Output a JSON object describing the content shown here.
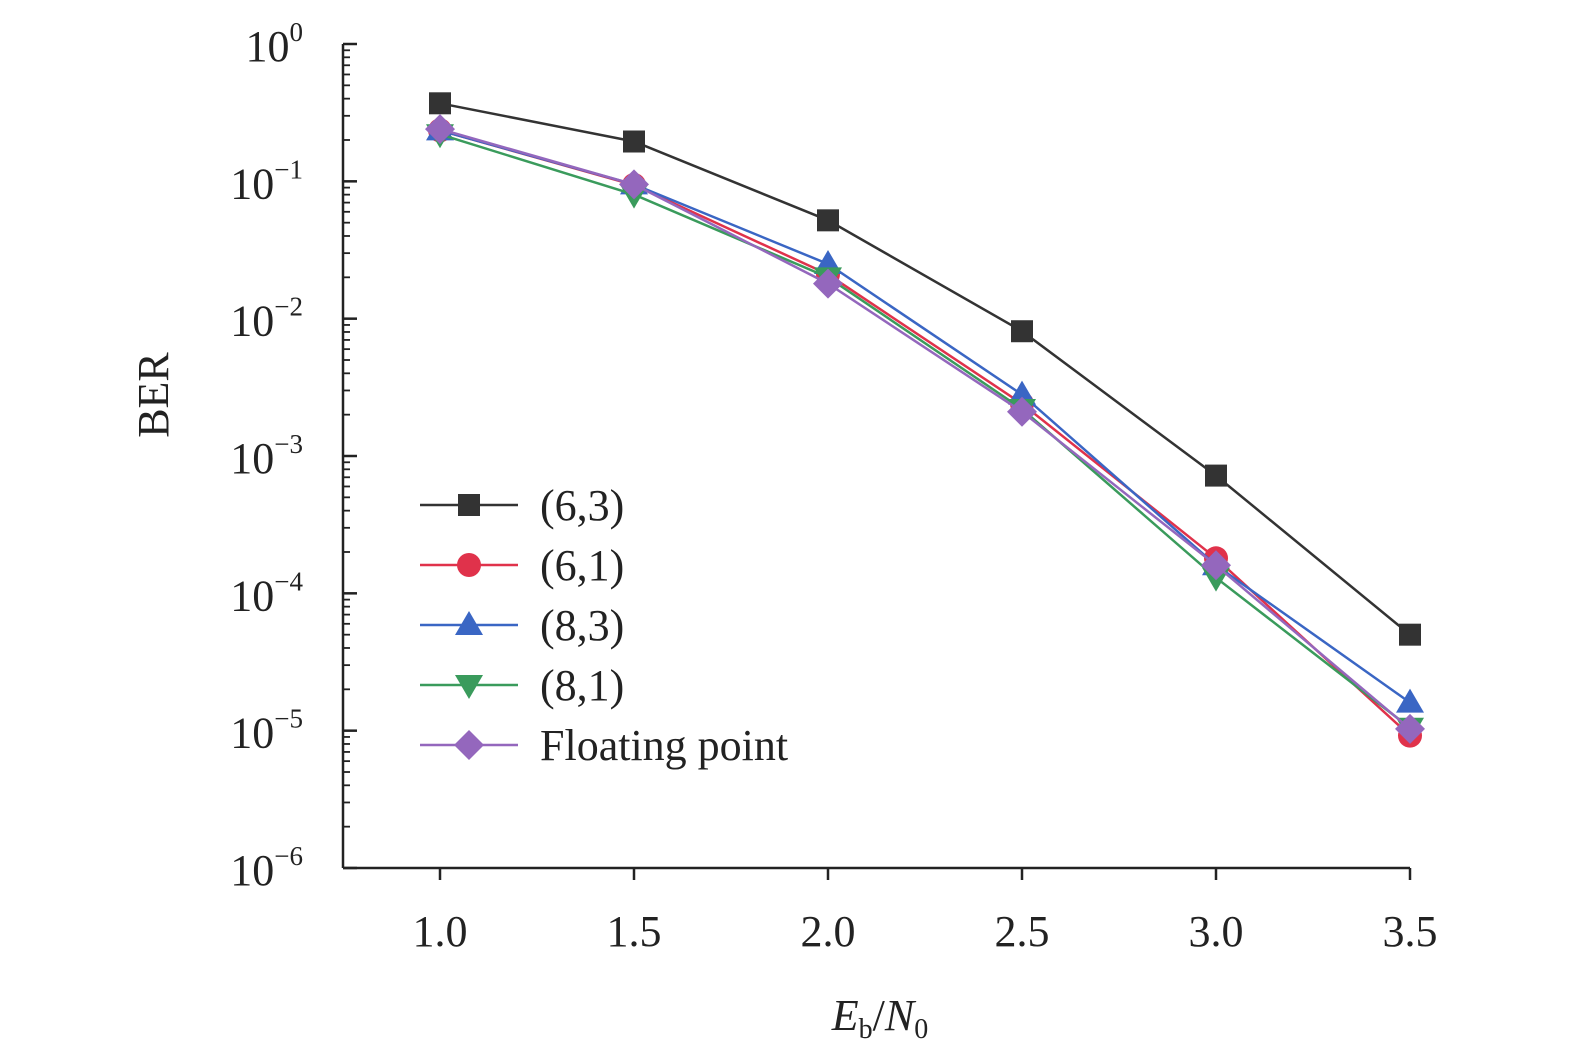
{
  "chart_data": {
    "type": "line",
    "title": "",
    "xlabel": {
      "main": "E",
      "main_sub": "b",
      "slash": "/",
      "denom": "N",
      "denom_sub": "0"
    },
    "ylabel": "BER",
    "y_scale": "log",
    "xlim": [
      0.75,
      3.5
    ],
    "ylim": [
      1e-06,
      1
    ],
    "x_ticks": [
      1.0,
      1.5,
      2.0,
      2.5,
      3.0,
      3.5
    ],
    "x_tick_labels": [
      "1.0",
      "1.5",
      "2.0",
      "2.5",
      "3.0",
      "3.5"
    ],
    "y_ticks": [
      1,
      0.1,
      0.01,
      0.001,
      0.0001,
      1e-05,
      1e-06
    ],
    "y_tick_labels": [
      {
        "base": "10",
        "exp": "0"
      },
      {
        "base": "10",
        "exp": "−1"
      },
      {
        "base": "10",
        "exp": "−2"
      },
      {
        "base": "10",
        "exp": "−3"
      },
      {
        "base": "10",
        "exp": "−4"
      },
      {
        "base": "10",
        "exp": "−5"
      },
      {
        "base": "10",
        "exp": "−6"
      }
    ],
    "grid": false,
    "legend_position": "lower-left",
    "x": [
      1.0,
      1.5,
      2.0,
      2.5,
      3.0,
      3.5
    ],
    "series": [
      {
        "name": "(6,3)",
        "color": "#333333",
        "marker": "square",
        "values": [
          0.37,
          0.195,
          0.052,
          0.0081,
          0.00072,
          5e-05
        ]
      },
      {
        "name": "(6,1)",
        "color": "#e0324b",
        "marker": "circle",
        "values": [
          0.235,
          0.094,
          0.021,
          0.0024,
          0.00018,
          9.2e-06
        ]
      },
      {
        "name": "(8,3)",
        "color": "#3a66c4",
        "marker": "triangle-up",
        "values": [
          0.235,
          0.095,
          0.025,
          0.0028,
          0.00016,
          1.6e-05
        ]
      },
      {
        "name": "(8,1)",
        "color": "#3a9b5c",
        "marker": "triangle-down",
        "values": [
          0.22,
          0.08,
          0.02,
          0.0022,
          0.00013,
          1.05e-05
        ]
      },
      {
        "name": "Floating point",
        "color": "#9467bd",
        "marker": "diamond",
        "values": [
          0.24,
          0.095,
          0.018,
          0.0021,
          0.00016,
          1.03e-05
        ]
      }
    ]
  }
}
